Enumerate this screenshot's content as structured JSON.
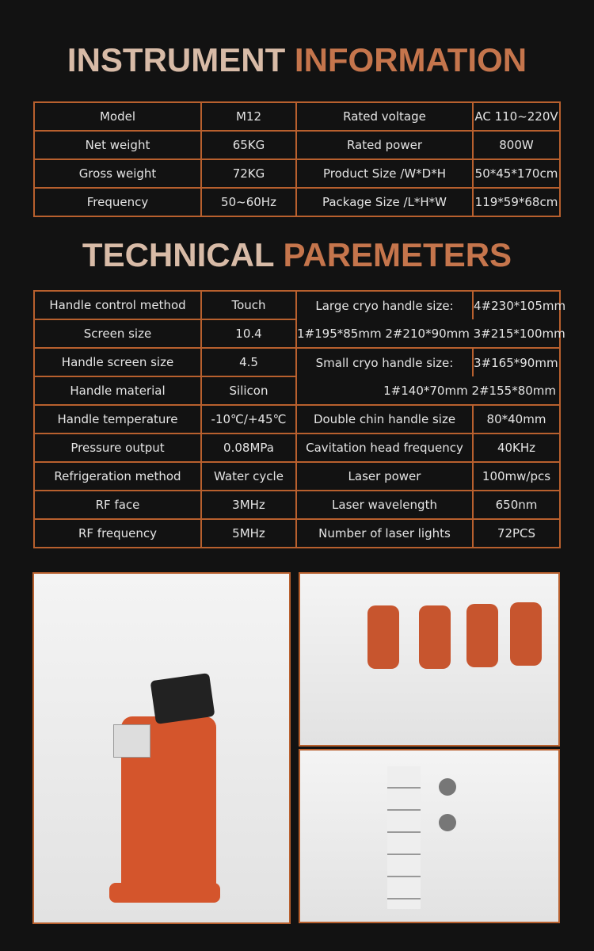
{
  "instrument": {
    "title_a": "INSTRUMENT",
    "title_b": "INFORMATION",
    "rows": [
      [
        "Model",
        "M12",
        "Rated voltage",
        "AC 110~220V"
      ],
      [
        "Net weight",
        "65KG",
        "Rated power",
        "800W"
      ],
      [
        "Gross weight",
        "72KG",
        "Product Size /W*D*H",
        "50*45*170cm"
      ],
      [
        "Frequency",
        "50~60Hz",
        "Package Size /L*H*W",
        "119*59*68cm"
      ]
    ]
  },
  "technical": {
    "title_a": "TECHNICAL",
    "title_b": "PAREMETERS",
    "left_rows": [
      [
        "Handle control method",
        "Touch"
      ],
      [
        "Screen size",
        "10.4"
      ],
      [
        "Handle screen size",
        "4.5"
      ],
      [
        "Handle material",
        "Silicon"
      ],
      [
        "Handle temperature",
        "-10℃/+45℃"
      ],
      [
        "Pressure output",
        "0.08MPa"
      ],
      [
        "Refrigeration method",
        "Water cycle"
      ],
      [
        "RF face",
        "3MHz"
      ],
      [
        "RF frequency",
        "5MHz"
      ]
    ],
    "large_cryo": {
      "label": "Large cryo handle size:",
      "a": "4#230*105mm",
      "b": "1#195*85mm  2#210*90mm  3#215*100mm"
    },
    "small_cryo": {
      "label": "Small cryo handle size:",
      "a": "3#165*90mm",
      "b": "1#140*70mm  2#155*80mm"
    },
    "right_rows": [
      [
        "Double chin handle size",
        "80*40mm"
      ],
      [
        "Cavitation head frequency",
        "40KHz"
      ],
      [
        "Laser power",
        "100mw/pcs"
      ],
      [
        "Laser wavelength",
        "650nm"
      ],
      [
        "Number of laser lights",
        "72PCS"
      ]
    ]
  },
  "colors": {
    "background": "#121212",
    "border": "#b8602e",
    "title_light": "#d8bba7",
    "title_accent": "#c5754c"
  }
}
